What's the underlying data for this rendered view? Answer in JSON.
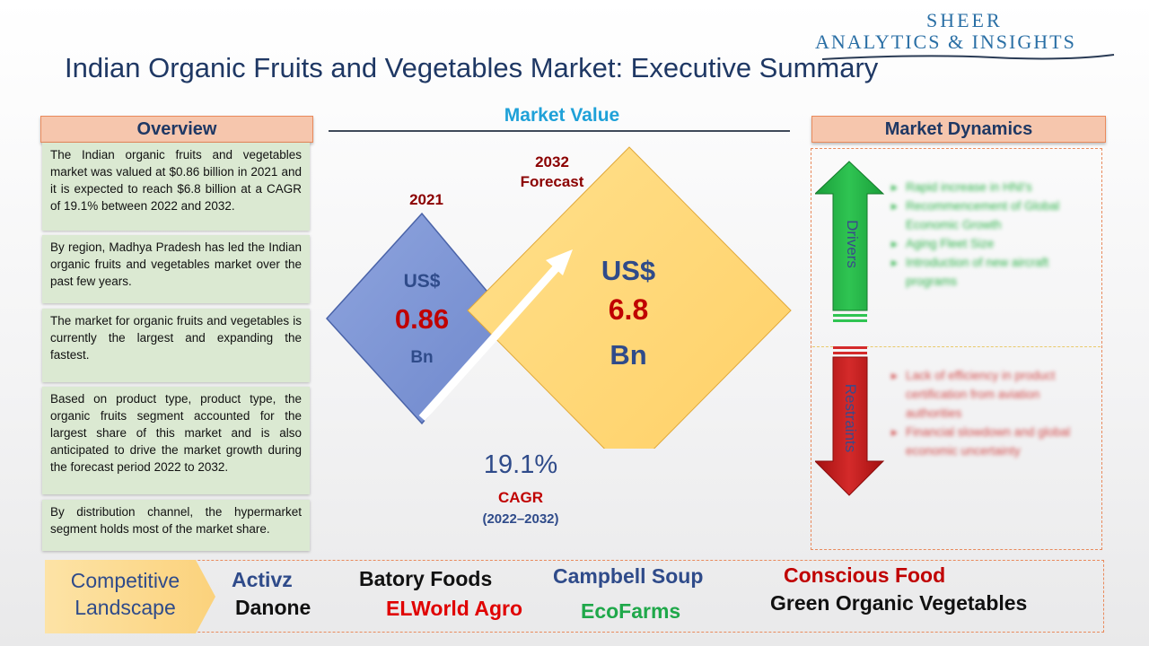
{
  "logo": {
    "line1": "SHEER",
    "line2": "ANALYTICS & INSIGHTS"
  },
  "title": "Indian Organic Fruits and Vegetables Market: Executive Summary",
  "overview": {
    "heading": "Overview",
    "paragraphs": [
      "The Indian organic fruits and vegetables market was valued at $0.86 billion in 2021 and it is expected to reach $6.8 billion at a CAGR of 19.1% between 2022 and 2032.",
      "By region, Madhya Pradesh has led the Indian organic fruits and vegetables market over the past few years.",
      "The market for organic fruits and vegetables is currently the largest and expanding the fastest.",
      "Based on product type, product type, the organic fruits segment accounted for the largest share of this market and is also anticipated to drive the market growth during the forecast period 2022 to 2032.",
      "By distribution channel, the hypermarket segment holds most of the market share."
    ]
  },
  "market_value": {
    "heading": "Market Value",
    "year_2021": "2021",
    "year_2032": "2032",
    "forecast_label": "Forecast",
    "currency_small": "US$",
    "value_2021": "0.86",
    "unit_small": "Bn",
    "currency_large": "US$",
    "value_2032": "6.8",
    "unit_large": "Bn",
    "cagr_value": "19.1%",
    "cagr_label": "CAGR",
    "cagr_period": "(2022–2032)",
    "colors": {
      "diamond_2021": "#7f98d6",
      "diamond_2032": "#ffd97a",
      "value_red": "#c00000",
      "text_blue": "#2f4b8a"
    }
  },
  "market_dynamics": {
    "heading": "Market Dynamics",
    "drivers_label": "Drivers",
    "restraints_label": "Restraints",
    "drivers": [
      "Rapid increase in HNI's",
      "Recommencement of Global Economic Growth",
      "Aging Fleet Size",
      "Introduction of new aircraft programs"
    ],
    "restraints": [
      "Lack of efficiency in product certification from aviation authorities",
      "Financial slowdown and global economic uncertainty"
    ]
  },
  "competitive_landscape": {
    "label_line1": "Competitive",
    "label_line2": "Landscape",
    "companies": [
      {
        "name": "Activz",
        "color": "#2f4b8a"
      },
      {
        "name": "Batory Foods",
        "color": "#111111"
      },
      {
        "name": "Campbell Soup",
        "color": "#2f4b8a"
      },
      {
        "name": "Conscious Food",
        "color": "#c00000"
      },
      {
        "name": "Danone",
        "color": "#111111"
      },
      {
        "name": "ELWorld Agro",
        "color": "#e00000"
      },
      {
        "name": "EcoFarms",
        "color": "#1fa84a"
      },
      {
        "name": "Green Organic Vegetables",
        "color": "#111111"
      }
    ]
  }
}
